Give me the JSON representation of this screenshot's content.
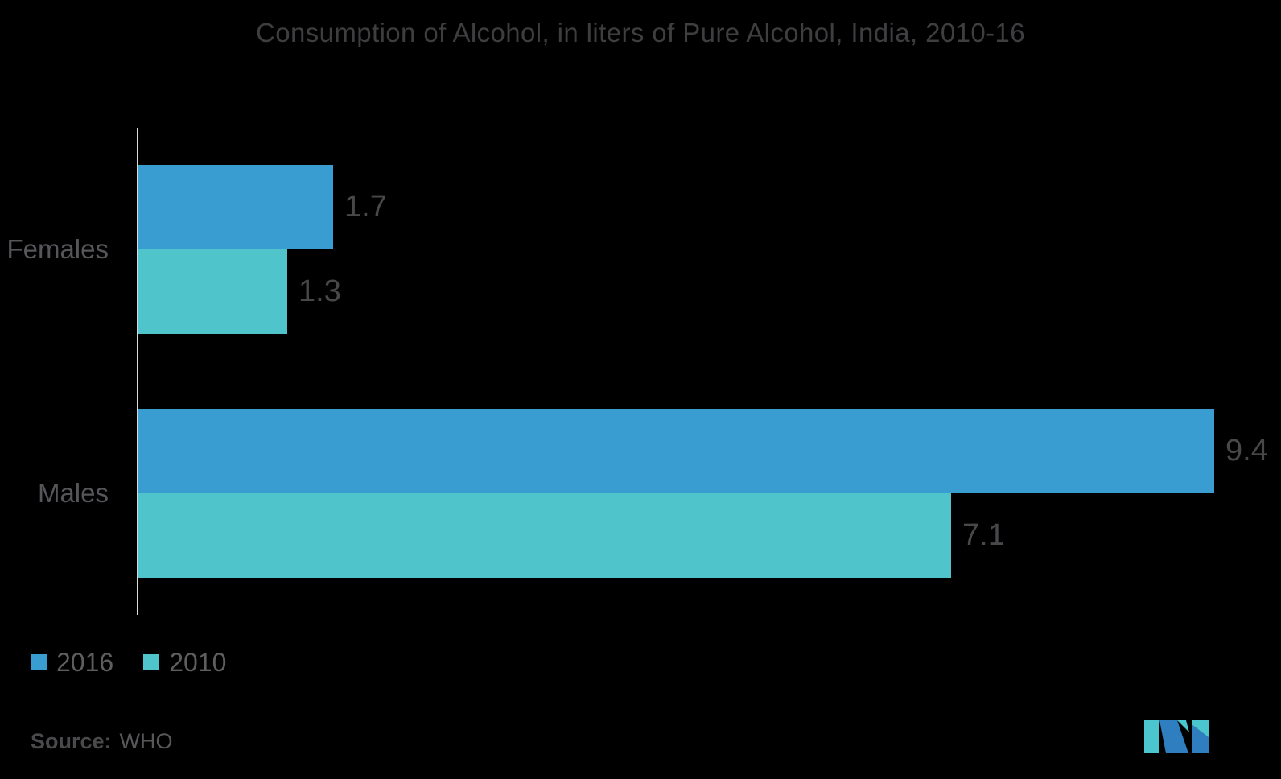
{
  "chart_data": {
    "type": "bar",
    "orientation": "horizontal",
    "title": "Consumption of Alcohol, in liters of Pure Alcohol, India, 2010-16",
    "categories": [
      "Females",
      "Males"
    ],
    "series": [
      {
        "name": "2016",
        "color": "#3A9DD2",
        "values": [
          1.7,
          9.4
        ]
      },
      {
        "name": "2010",
        "color": "#4FC4CB",
        "values": [
          1.3,
          7.1
        ]
      }
    ],
    "xlim": [
      0,
      9.4
    ],
    "grid": false,
    "axis_line_color": "#D9D9D9",
    "legend_position": "bottom-left",
    "background": "#000000",
    "value_label_color": "#48484A"
  },
  "source": {
    "label": "Source:",
    "value": "WHO"
  },
  "logo": {
    "name": "mordor-intelligence-logo",
    "colors": {
      "teal": "#4BC5CE",
      "blue": "#2E7EC0"
    }
  }
}
